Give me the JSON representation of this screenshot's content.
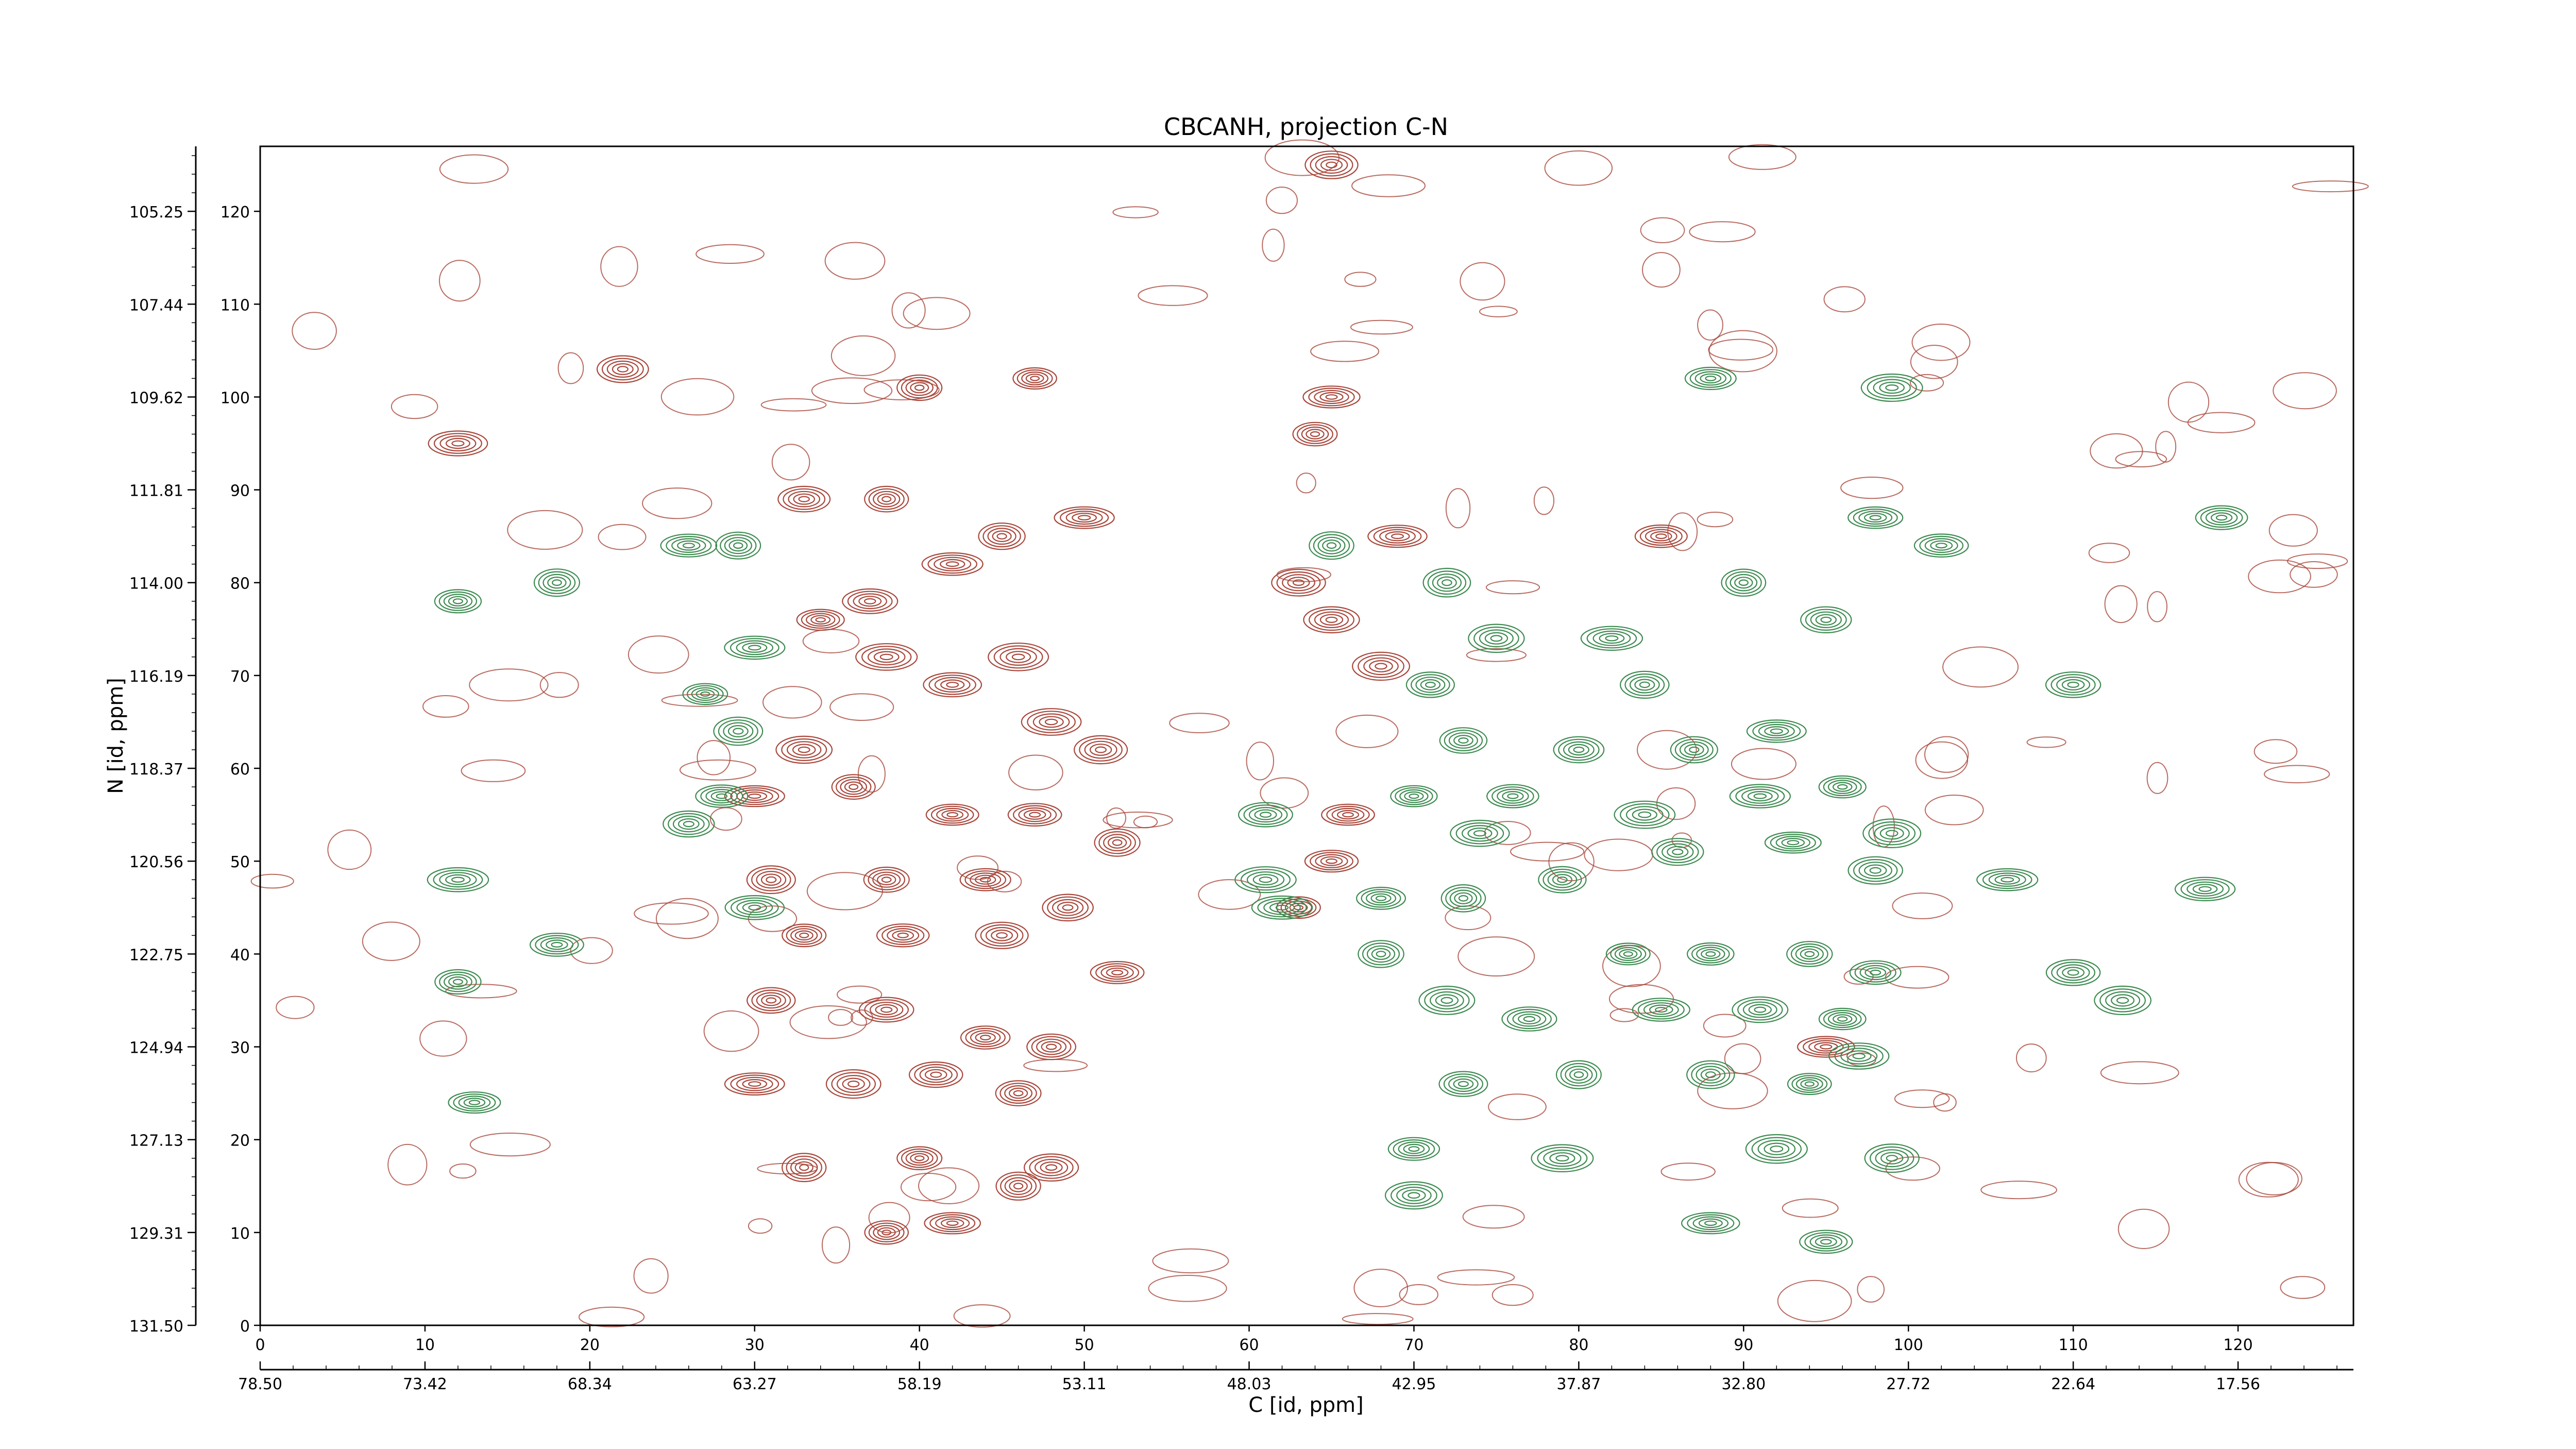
{
  "colors": {
    "positive": "#a8463a",
    "negative": "#3d8a50",
    "axis": "#000000",
    "background": "#ffffff"
  },
  "chart_data": {
    "type": "contour",
    "title": "CBCANH, projection C-N",
    "xlabel": "C [id, ppm]",
    "ylabel": "N [id, ppm]",
    "x_index_range": [
      0,
      127
    ],
    "y_index_range": [
      0,
      127
    ],
    "x_index_ticks": [
      "0",
      "10",
      "20",
      "30",
      "40",
      "50",
      "60",
      "70",
      "80",
      "90",
      "100",
      "110",
      "120"
    ],
    "y_index_ticks": [
      "0",
      "10",
      "20",
      "30",
      "40",
      "50",
      "60",
      "70",
      "80",
      "90",
      "100",
      "110",
      "120"
    ],
    "x_ppm_ticks": [
      "78.50",
      "73.42",
      "68.34",
      "63.27",
      "58.19",
      "53.11",
      "48.03",
      "42.95",
      "37.87",
      "32.80",
      "27.72",
      "22.64",
      "17.56"
    ],
    "y_ppm_ticks": [
      "131.50",
      "129.31",
      "127.13",
      "124.94",
      "122.75",
      "120.56",
      "118.37",
      "116.19",
      "114.00",
      "111.81",
      "109.62",
      "107.44",
      "105.25"
    ],
    "grid": false,
    "series": [
      {
        "sign": "positive",
        "peaks": [
          [
            42,
            82
          ],
          [
            37,
            78
          ],
          [
            34,
            76
          ],
          [
            38,
            72
          ],
          [
            42,
            69
          ],
          [
            46,
            72
          ],
          [
            48,
            65
          ],
          [
            51,
            62
          ],
          [
            33,
            62
          ],
          [
            30,
            57
          ],
          [
            36,
            58
          ],
          [
            42,
            55
          ],
          [
            47,
            55
          ],
          [
            52,
            52
          ],
          [
            31,
            48
          ],
          [
            38,
            48
          ],
          [
            44,
            48
          ],
          [
            49,
            45
          ],
          [
            33,
            42
          ],
          [
            39,
            42
          ],
          [
            45,
            42
          ],
          [
            52,
            38
          ],
          [
            31,
            35
          ],
          [
            38,
            34
          ],
          [
            44,
            31
          ],
          [
            48,
            30
          ],
          [
            30,
            26
          ],
          [
            36,
            26
          ],
          [
            41,
            27
          ],
          [
            46,
            25
          ],
          [
            33,
            17
          ],
          [
            40,
            18
          ],
          [
            46,
            15
          ],
          [
            38,
            10
          ],
          [
            42,
            11
          ],
          [
            48,
            17
          ],
          [
            45,
            85
          ],
          [
            50,
            87
          ],
          [
            33,
            89
          ],
          [
            38,
            89
          ],
          [
            65,
            125
          ],
          [
            65,
            100
          ],
          [
            64,
            96
          ],
          [
            69,
            85
          ],
          [
            63,
            80
          ],
          [
            65,
            76
          ],
          [
            68,
            71
          ],
          [
            66,
            55
          ],
          [
            65,
            50
          ],
          [
            63,
            45
          ],
          [
            85,
            85
          ],
          [
            95,
            30
          ],
          [
            47,
            102
          ],
          [
            40,
            101
          ],
          [
            22,
            103
          ],
          [
            12,
            95
          ]
        ]
      },
      {
        "sign": "negative",
        "peaks": [
          [
            26,
            84
          ],
          [
            29,
            84
          ],
          [
            12,
            78
          ],
          [
            18,
            80
          ],
          [
            30,
            73
          ],
          [
            27,
            68
          ],
          [
            29,
            64
          ],
          [
            28,
            57
          ],
          [
            26,
            54
          ],
          [
            30,
            45
          ],
          [
            12,
            48
          ],
          [
            18,
            41
          ],
          [
            12,
            37
          ],
          [
            13,
            24
          ],
          [
            75,
            74
          ],
          [
            71,
            69
          ],
          [
            82,
            74
          ],
          [
            84,
            69
          ],
          [
            73,
            63
          ],
          [
            80,
            62
          ],
          [
            87,
            62
          ],
          [
            92,
            64
          ],
          [
            70,
            57
          ],
          [
            76,
            57
          ],
          [
            84,
            55
          ],
          [
            91,
            57
          ],
          [
            96,
            58
          ],
          [
            99,
            53
          ],
          [
            74,
            53
          ],
          [
            79,
            48
          ],
          [
            86,
            51
          ],
          [
            93,
            52
          ],
          [
            98,
            49
          ],
          [
            61,
            55
          ],
          [
            62,
            45
          ],
          [
            68,
            46
          ],
          [
            73,
            46
          ],
          [
            68,
            40
          ],
          [
            72,
            35
          ],
          [
            77,
            33
          ],
          [
            83,
            40
          ],
          [
            88,
            40
          ],
          [
            94,
            40
          ],
          [
            98,
            38
          ],
          [
            85,
            34
          ],
          [
            91,
            34
          ],
          [
            96,
            33
          ],
          [
            73,
            26
          ],
          [
            80,
            27
          ],
          [
            88,
            27
          ],
          [
            94,
            26
          ],
          [
            97,
            29
          ],
          [
            70,
            19
          ],
          [
            79,
            18
          ],
          [
            92,
            19
          ],
          [
            99,
            18
          ],
          [
            70,
            14
          ],
          [
            88,
            11
          ],
          [
            95,
            9
          ],
          [
            98,
            87
          ],
          [
            102,
            84
          ],
          [
            106,
            48
          ],
          [
            110,
            38
          ],
          [
            113,
            35
          ],
          [
            118,
            47
          ],
          [
            119,
            87
          ],
          [
            110,
            69
          ],
          [
            99,
            101
          ],
          [
            88,
            102
          ],
          [
            95,
            76
          ],
          [
            90,
            80
          ],
          [
            72,
            80
          ],
          [
            61,
            48
          ],
          [
            65,
            84
          ]
        ]
      }
    ]
  }
}
